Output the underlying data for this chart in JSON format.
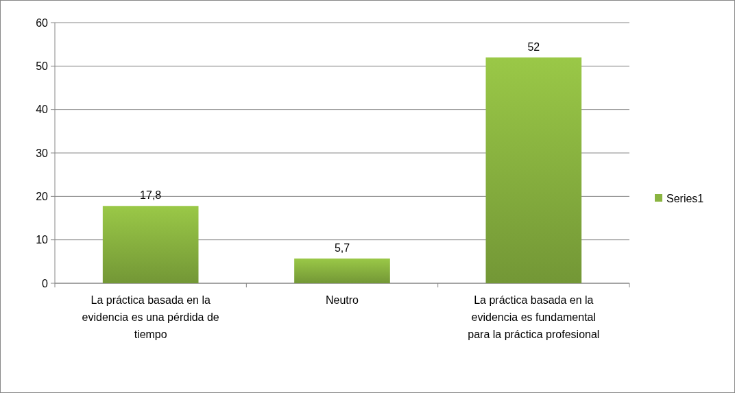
{
  "chart_data": {
    "type": "bar",
    "categories": [
      "La práctica basada en la evidencia es una pérdida de tiempo",
      "Neutro",
      "La práctica basada en la evidencia es fundamental para la práctica profesional"
    ],
    "series": [
      {
        "name": "Series1",
        "color": "#8ab440",
        "values": [
          17.8,
          5.7,
          52
        ],
        "value_labels": [
          "17,8",
          "5,7",
          "52"
        ]
      }
    ],
    "ylim": [
      0,
      60
    ],
    "yticks": [
      0,
      10,
      20,
      30,
      40,
      50,
      60
    ],
    "grid": "y",
    "legend": "right"
  }
}
